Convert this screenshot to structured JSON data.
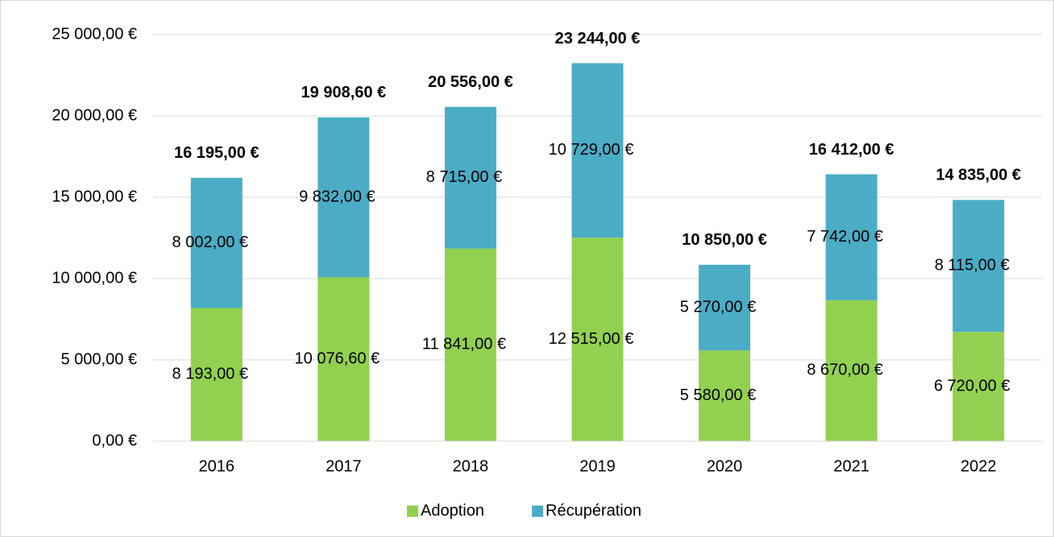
{
  "chart_data": {
    "type": "stacked_bar",
    "categories": [
      "2016",
      "2017",
      "2018",
      "2019",
      "2020",
      "2021",
      "2022"
    ],
    "series": [
      {
        "name": "Adoption",
        "color": "#92d050",
        "values": [
          8193,
          10076.6,
          11841,
          12515,
          5580,
          8670,
          6720
        ],
        "value_labels": [
          "8 193,00 €",
          "10 076,60 €",
          "11 841,00 €",
          "12 515,00 €",
          "5 580,00 €",
          "8 670,00 €",
          "6 720,00 €"
        ]
      },
      {
        "name": "Récupération",
        "color": "#4bacc6",
        "values": [
          8002,
          9832,
          8715,
          10729,
          5270,
          7742,
          8115
        ],
        "value_labels": [
          "8 002,00 €",
          "9 832,00 €",
          "8 715,00 €",
          "10 729,00 €",
          "5 270,00 €",
          "7 742,00 €",
          "8 115,00 €"
        ]
      }
    ],
    "totals": {
      "values": [
        16195,
        19908.6,
        20556,
        23244,
        10850,
        16412,
        14835
      ],
      "value_labels": [
        "16 195,00 €",
        "19 908,60 €",
        "20 556,00 €",
        "23 244,00 €",
        "10 850,00 €",
        "16 412,00 €",
        "14 835,00 €"
      ]
    },
    "ylim": [
      0,
      25000
    ],
    "yticks": [
      {
        "value": 0,
        "label": "0,00 €"
      },
      {
        "value": 5000,
        "label": "5 000,00 €"
      },
      {
        "value": 10000,
        "label": "10 000,00 €"
      },
      {
        "value": 15000,
        "label": "15 000,00 €"
      },
      {
        "value": 20000,
        "label": "20 000,00 €"
      },
      {
        "value": 25000,
        "label": "25 000,00 €"
      }
    ],
    "grid": true,
    "legend": "bottom"
  }
}
